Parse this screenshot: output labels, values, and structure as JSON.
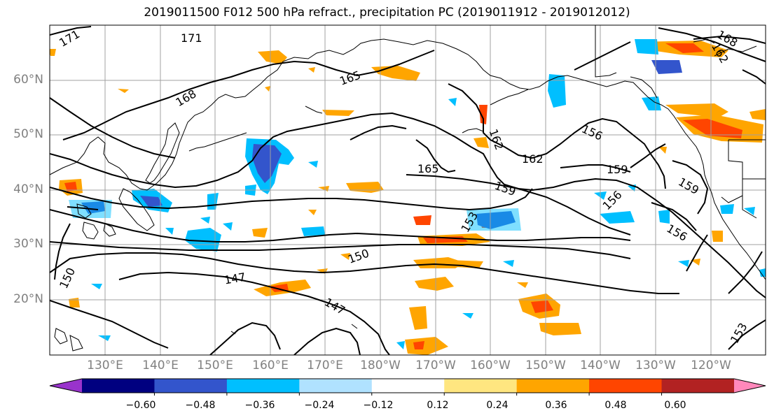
{
  "title": "2019011500 F012 500 hPa refract., precipitation PC (2019011912 - 2019012012)",
  "lat_labels": [
    "60°N",
    "50°N",
    "40°N",
    "30°N",
    "20°N"
  ],
  "lon_labels": [
    "130°E",
    "140°E",
    "150°E",
    "160°E",
    "170°E",
    "180°W",
    "170°W",
    "160°W",
    "150°W",
    "140°W",
    "130°W",
    "120°W"
  ],
  "contour_labels": [
    "171",
    "171",
    "168",
    "165",
    "165",
    "162",
    "162",
    "159",
    "159",
    "159",
    "156",
    "156",
    "156",
    "153",
    "150",
    "150",
    "147",
    "147",
    "168",
    "162",
    "153"
  ],
  "colorbar": {
    "colors": [
      "#9933cc",
      "#000080",
      "#3355cc",
      "#00bfff",
      "#b0e2ff",
      "#ffffff",
      "#ffe680",
      "#ffa500",
      "#ff4500",
      "#b22222",
      "#ff88bb"
    ],
    "tick_labels": [
      "−0.60",
      "−0.48",
      "−0.36",
      "−0.24",
      "−0.12",
      "0.12",
      "0.24",
      "0.36",
      "0.48",
      "0.60"
    ]
  }
}
